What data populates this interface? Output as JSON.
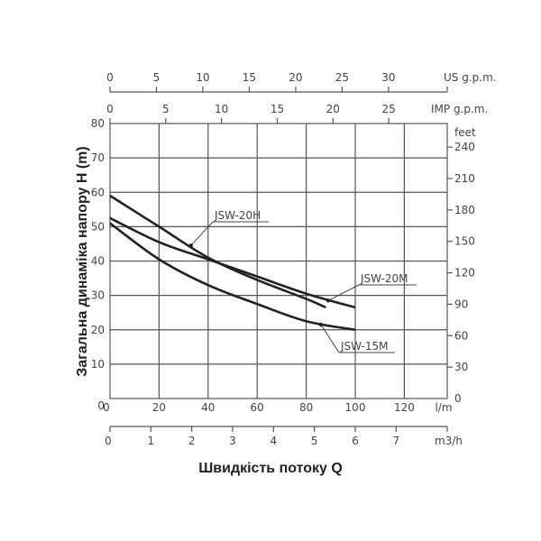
{
  "chart_data": {
    "type": "line",
    "xlabel": "Швидкість потоку Q",
    "ylabel": "Загальна динаміка напору H (m)",
    "x_unit": "l/m",
    "y_unit": "m",
    "xlim": [
      0,
      137.5
    ],
    "ylim": [
      0,
      80
    ],
    "grid": true,
    "x_ticks": [
      0,
      20,
      40,
      60,
      80,
      100,
      120
    ],
    "y_ticks": [
      0,
      10,
      20,
      30,
      40,
      50,
      60,
      70,
      80
    ],
    "secondary_axes": {
      "us_gpm": {
        "label": "US g.p.m.",
        "ticks": [
          0,
          5,
          10,
          15,
          20,
          25,
          30
        ]
      },
      "imp_gpm": {
        "label": "IMP g.p.m.",
        "ticks": [
          0,
          5,
          10,
          15,
          20,
          25
        ]
      },
      "m3h": {
        "label": "m3/h",
        "ticks": [
          0,
          1,
          2,
          3,
          4,
          5,
          6,
          7
        ]
      },
      "feet": {
        "label": "feet",
        "ticks": [
          0,
          30,
          60,
          90,
          120,
          150,
          180,
          210,
          240
        ]
      }
    },
    "series": [
      {
        "name": "JSW-20H",
        "x": [
          0,
          20,
          40,
          60,
          80,
          88
        ],
        "y": [
          59,
          50,
          41,
          34.5,
          29,
          26.5
        ]
      },
      {
        "name": "JSW-20M",
        "x": [
          0,
          20,
          40,
          60,
          80,
          100
        ],
        "y": [
          52.5,
          45.5,
          40.5,
          35.5,
          30.5,
          26.5
        ]
      },
      {
        "name": "JSW-15M",
        "x": [
          0,
          20,
          40,
          60,
          80,
          100
        ],
        "y": [
          51,
          40.5,
          33,
          27.5,
          22.5,
          20
        ]
      }
    ],
    "color": "#222222"
  }
}
